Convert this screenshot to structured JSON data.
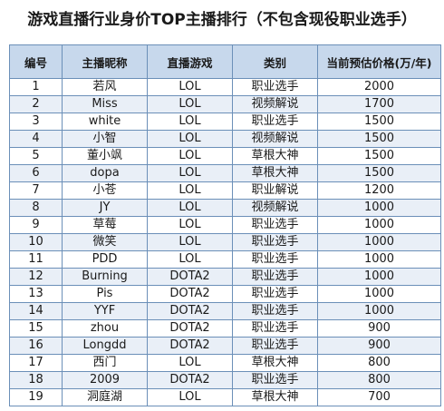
{
  "title": "游戏直播行业身价TOP主播排行（不包含现役职业选手）",
  "columns": [
    "编号",
    "主播昵称",
    "直播游戏",
    "类别",
    "当前预估价格(万/年)"
  ],
  "rows": [
    [
      "1",
      "若风",
      "LOL",
      "职业选手",
      "2000"
    ],
    [
      "2",
      "Miss",
      "LOL",
      "视频解说",
      "1700"
    ],
    [
      "3",
      "white",
      "LOL",
      "职业选手",
      "1500"
    ],
    [
      "4",
      "小智",
      "LOL",
      "视频解说",
      "1500"
    ],
    [
      "5",
      "董小飒",
      "LOL",
      "草根大神",
      "1500"
    ],
    [
      "6",
      "dopa",
      "LOL",
      "草根大神",
      "1500"
    ],
    [
      "7",
      "小苍",
      "LOL",
      "职业解说",
      "1200"
    ],
    [
      "8",
      "JY",
      "LOL",
      "视频解说",
      "1000"
    ],
    [
      "9",
      "草莓",
      "LOL",
      "职业选手",
      "1000"
    ],
    [
      "10",
      "微笑",
      "LOL",
      "职业选手",
      "1000"
    ],
    [
      "11",
      "PDD",
      "LOL",
      "职业选手",
      "1000"
    ],
    [
      "12",
      "Burning",
      "DOTA2",
      "职业选手",
      "1000"
    ],
    [
      "13",
      "Pis",
      "DOTA2",
      "职业选手",
      "1000"
    ],
    [
      "14",
      "YYF",
      "DOTA2",
      "职业选手",
      "1000"
    ],
    [
      "15",
      "zhou",
      "DOTA2",
      "职业选手",
      "900"
    ],
    [
      "16",
      "Longdd",
      "DOTA2",
      "职业选手",
      "900"
    ],
    [
      "17",
      "西门",
      "LOL",
      "草根大神",
      "800"
    ],
    [
      "18",
      "2009",
      "DOTA2",
      "职业选手",
      "800"
    ],
    [
      "19",
      "洞庭湖",
      "LOL",
      "草根大神",
      "700"
    ]
  ]
}
